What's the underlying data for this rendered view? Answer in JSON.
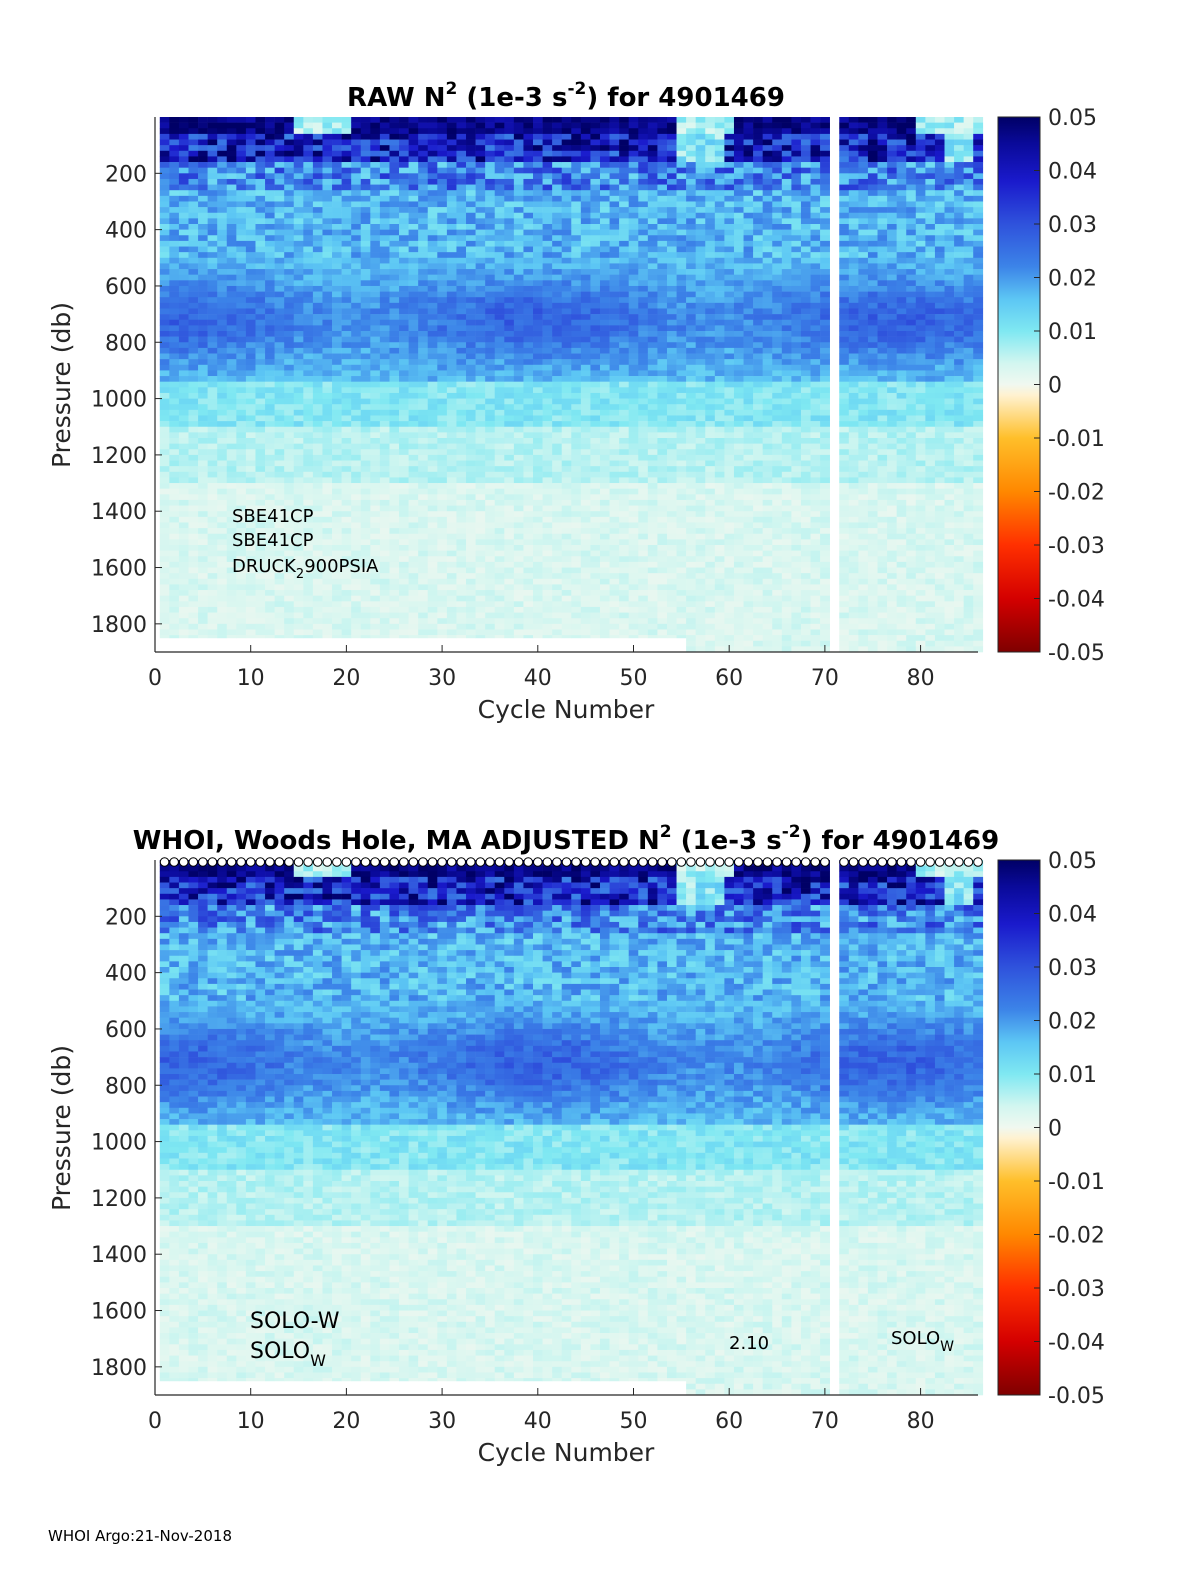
{
  "footer": "WHOI Argo:21-Nov-2018",
  "colormap": {
    "stops": [
      {
        "v": -0.05,
        "c": "#7f0000"
      },
      {
        "v": -0.04,
        "c": "#d40000"
      },
      {
        "v": -0.03,
        "c": "#ff3000"
      },
      {
        "v": -0.02,
        "c": "#ff8800"
      },
      {
        "v": -0.01,
        "c": "#ffbf2a"
      },
      {
        "v": -0.002,
        "c": "#fff2d0"
      },
      {
        "v": 0.0,
        "c": "#f0f8f0"
      },
      {
        "v": 0.004,
        "c": "#d2f6f0"
      },
      {
        "v": 0.01,
        "c": "#7fe8f2"
      },
      {
        "v": 0.016,
        "c": "#5cc6f4"
      },
      {
        "v": 0.022,
        "c": "#3c84e8"
      },
      {
        "v": 0.03,
        "c": "#2f52dc"
      },
      {
        "v": 0.038,
        "c": "#1a1acc"
      },
      {
        "v": 0.045,
        "c": "#0a0a9a"
      },
      {
        "v": 0.05,
        "c": "#000066"
      }
    ]
  },
  "chart_data": [
    {
      "type": "heatmap",
      "id": "raw",
      "title_parts": [
        "RAW N",
        "2",
        " (1e-3 s",
        "-2",
        ") for 4901469"
      ],
      "xlabel": "Cycle Number",
      "ylabel": "Pressure (db)",
      "xlim": [
        0,
        86
      ],
      "ylim": [
        1900,
        0
      ],
      "xticks": [
        "0",
        "10",
        "20",
        "30",
        "40",
        "50",
        "60",
        "70",
        "80"
      ],
      "yticks": [
        "200",
        "400",
        "600",
        "800",
        "1000",
        "1200",
        "1400",
        "1600",
        "1800"
      ],
      "clim": [
        -0.05,
        0.05
      ],
      "colorbar_ticks": [
        "0.05",
        "0.04",
        "0.03",
        "0.02",
        "0.01",
        "0",
        "-0.01",
        "-0.02",
        "-0.03",
        "-0.04",
        "-0.05"
      ],
      "sensor_labels": [
        "SBE41CP",
        "SBE41CP"
      ],
      "pressure_sensor": {
        "base": "DRUCK",
        "sub": "2",
        "rest": "900PSIA"
      },
      "qc_markers": false,
      "missing_cycles": [
        71
      ],
      "max_pressure_by_cycle": {
        "cycles_1_to_55": 1850,
        "cycles_56_plus": 1900
      }
    },
    {
      "type": "heatmap",
      "id": "adjusted",
      "title_parts": [
        "WHOI, Woods Hole, MA  ADJUSTED N",
        "2",
        " (1e-3 s",
        "-2",
        ") for 4901469"
      ],
      "xlabel": "Cycle Number",
      "ylabel": "Pressure (db)",
      "xlim": [
        0,
        86
      ],
      "ylim": [
        1900,
        0
      ],
      "xticks": [
        "0",
        "10",
        "20",
        "30",
        "40",
        "50",
        "60",
        "70",
        "80"
      ],
      "yticks": [
        "200",
        "400",
        "600",
        "800",
        "1000",
        "1200",
        "1400",
        "1600",
        "1800"
      ],
      "clim": [
        -0.05,
        0.05
      ],
      "colorbar_ticks": [
        "0.05",
        "0.04",
        "0.03",
        "0.02",
        "0.01",
        "0",
        "-0.01",
        "-0.02",
        "-0.03",
        "-0.04",
        "-0.05"
      ],
      "float_labels": {
        "line1": "SOLO-W",
        "line2_base": "SOLO",
        "line2_sub": "W"
      },
      "firmware_label": "2.10",
      "float_label_right": {
        "base": "SOLO",
        "sub": "W"
      },
      "qc_markers": true,
      "missing_cycles": [
        71
      ],
      "max_pressure_by_cycle": {
        "cycles_1_to_55": 1850,
        "cycles_56_plus": 1900
      }
    }
  ]
}
